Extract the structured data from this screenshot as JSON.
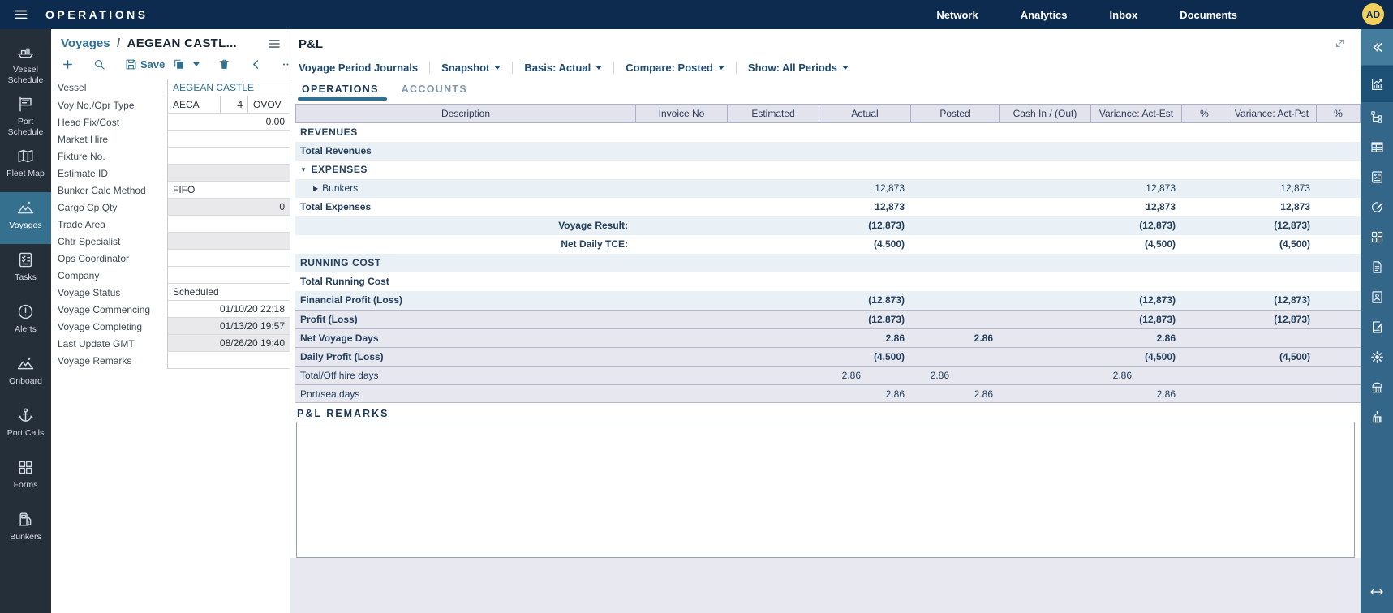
{
  "colors": {
    "topbar_bg": "#0d2b4f",
    "accent": "#2e7191",
    "left_rail_bg": "#252f3a",
    "left_rail_active_bg": "#35718f",
    "right_rail_bg": "#346689",
    "right_rail_active_bg": "#1e5176",
    "table_header_bg": "#e3e3ed",
    "row_blue_bg": "#e9f0f6",
    "row_lavender_bg": "#e7e7f0",
    "avatar_bg": "#f2d05e"
  },
  "topbar": {
    "title": "OPERATIONS",
    "nav": [
      {
        "label": "Network"
      },
      {
        "label": "Analytics"
      },
      {
        "label": "Inbox"
      },
      {
        "label": "Documents"
      }
    ],
    "avatar": "AD"
  },
  "left_nav": {
    "items": [
      {
        "icon": "vessel-schedule-icon",
        "label": "Vessel Schedule",
        "active": false
      },
      {
        "icon": "port-schedule-icon",
        "label": "Port Schedule",
        "active": false
      },
      {
        "icon": "fleet-map-icon",
        "label": "Fleet Map",
        "active": false
      },
      {
        "icon": "voyages-icon",
        "label": "Voyages",
        "active": true
      },
      {
        "icon": "tasks-icon",
        "label": "Tasks",
        "active": false
      },
      {
        "icon": "alerts-icon",
        "label": "Alerts",
        "active": false
      },
      {
        "icon": "onboard-icon",
        "label": "Onboard",
        "active": false
      },
      {
        "icon": "port-calls-icon",
        "label": "Port Calls",
        "active": false
      },
      {
        "icon": "forms-icon",
        "label": "Forms",
        "active": false
      },
      {
        "icon": "bunkers-icon",
        "label": "Bunkers",
        "active": false
      }
    ]
  },
  "voyage_panel": {
    "breadcrumb_root": "Voyages",
    "breadcrumb_separator": "/",
    "title": "AEGEAN CASTL...",
    "toolbar": [
      {
        "icon": "plus-icon",
        "name": "add"
      },
      {
        "icon": "search-icon",
        "name": "search",
        "sep": true
      },
      {
        "icon": "save-icon",
        "name": "save",
        "label": "Save",
        "sep": true
      },
      {
        "icon": "copy-icon",
        "name": "copy",
        "dropdown": true
      },
      {
        "icon": "delete-icon",
        "name": "delete",
        "sep": true
      },
      {
        "icon": "back-icon",
        "name": "back",
        "sep": true
      },
      {
        "icon": "more-icon",
        "name": "more",
        "sep": true
      }
    ],
    "fields": [
      {
        "label": "Vessel",
        "value": "AEGEAN CASTLE",
        "accent": true
      },
      {
        "label": "Voy No./Opr Type",
        "parts": [
          {
            "value": "AECA"
          },
          {
            "value": "4"
          },
          {
            "value": "OVOV"
          }
        ]
      },
      {
        "label": "Head Fix/Cost",
        "value": "0.00",
        "align": "right"
      },
      {
        "label": "Market Hire",
        "value": ""
      },
      {
        "label": "Fixture No.",
        "value": ""
      },
      {
        "label": "Estimate ID",
        "value": "",
        "readonly": true
      },
      {
        "label": "Bunker Calc Method",
        "value": "FIFO"
      },
      {
        "label": "Cargo Cp Qty",
        "value": "0",
        "align": "right",
        "readonly": true
      },
      {
        "label": "Trade Area",
        "value": ""
      },
      {
        "label": "Chtr Specialist",
        "value": "",
        "readonly": true
      },
      {
        "label": "Ops Coordinator",
        "value": ""
      },
      {
        "label": "Company",
        "value": ""
      },
      {
        "label": "Voyage Status",
        "value": "Scheduled"
      },
      {
        "label": "Voyage Commencing",
        "value": "01/10/20 22:18",
        "align": "right"
      },
      {
        "label": "Voyage Completing",
        "value": "01/13/20 19:57",
        "align": "right",
        "readonly": true
      },
      {
        "label": "Last Update GMT",
        "value": "08/26/20 19:40",
        "align": "right",
        "readonly": true
      },
      {
        "label": "Voyage Remarks",
        "value": ""
      }
    ]
  },
  "pl_panel": {
    "title": "P&L",
    "toolbar": [
      {
        "label": "Voyage Period Journals",
        "dropdown": false
      },
      {
        "label": "Snapshot",
        "dropdown": true
      },
      {
        "label": "Basis: Actual",
        "dropdown": true
      },
      {
        "label": "Compare: Posted",
        "dropdown": true
      },
      {
        "label": "Show: All Periods",
        "dropdown": true
      }
    ],
    "tabs": [
      {
        "label": "OPERATIONS",
        "active": true
      },
      {
        "label": "ACCOUNTS",
        "active": false
      }
    ],
    "remarks_label": "P&L REMARKS",
    "remarks_value": ""
  },
  "pl_table": {
    "columns": [
      {
        "key": "desc",
        "label": "Description"
      },
      {
        "key": "invoice",
        "label": "Invoice No"
      },
      {
        "key": "estimated",
        "label": "Estimated"
      },
      {
        "key": "actual",
        "label": "Actual"
      },
      {
        "key": "posted",
        "label": "Posted"
      },
      {
        "key": "cash",
        "label": "Cash In / (Out)"
      },
      {
        "key": "var_est",
        "label": "Variance: Act-Est"
      },
      {
        "key": "pct_est",
        "label": "%"
      },
      {
        "key": "var_pst",
        "label": "Variance: Act-Pst"
      },
      {
        "key": "pct_pst",
        "label": "%"
      }
    ],
    "rows": [
      {
        "desc": "REVENUES",
        "kind": "section",
        "bg": "white",
        "values": {}
      },
      {
        "desc": "Total Revenues",
        "kind": "bold",
        "bg": "blue",
        "values": {}
      },
      {
        "desc": "EXPENSES",
        "kind": "section",
        "bg": "white",
        "caret": "down",
        "values": {}
      },
      {
        "desc": "Bunkers",
        "kind": "normal",
        "bg": "blue",
        "caret": "right",
        "indent": true,
        "values": {
          "actual": "12,873",
          "var_est": "12,873",
          "var_pst": "12,873"
        }
      },
      {
        "desc": "Total Expenses",
        "kind": "bold",
        "bg": "white",
        "values": {
          "actual": "12,873",
          "var_est": "12,873",
          "var_pst": "12,873"
        }
      },
      {
        "desc": "Voyage Result:",
        "kind": "bold",
        "bg": "blue",
        "desc_align": "right",
        "values": {
          "actual": "(12,873)",
          "var_est": "(12,873)",
          "var_pst": "(12,873)"
        }
      },
      {
        "desc": "Net Daily TCE:",
        "kind": "bold",
        "bg": "white",
        "desc_align": "right",
        "values": {
          "actual": "(4,500)",
          "var_est": "(4,500)",
          "var_pst": "(4,500)"
        }
      },
      {
        "desc": "RUNNING COST",
        "kind": "section",
        "bg": "blue",
        "values": {}
      },
      {
        "desc": "Total Running Cost",
        "kind": "bold",
        "bg": "white",
        "values": {}
      },
      {
        "desc": "Financial Profit (Loss)",
        "kind": "bold",
        "bg": "blue",
        "values": {
          "actual": "(12,873)",
          "var_est": "(12,873)",
          "var_pst": "(12,873)"
        }
      },
      {
        "desc": "Profit (Loss)",
        "kind": "bold",
        "bg": "lavender",
        "values": {
          "actual": "(12,873)",
          "var_est": "(12,873)",
          "var_pst": "(12,873)"
        }
      },
      {
        "desc": "Net Voyage Days",
        "kind": "bold",
        "bg": "lavender",
        "values": {
          "actual": "2.86",
          "posted": "2.86",
          "var_est": "2.86"
        }
      },
      {
        "desc": "Daily Profit (Loss)",
        "kind": "bold",
        "bg": "lavender",
        "values": {
          "actual": "(4,500)",
          "var_est": "(4,500)",
          "var_pst": "(4,500)"
        }
      },
      {
        "desc": "Total/Off hire days",
        "kind": "normal",
        "bg": "lavender",
        "value_pad": true,
        "values": {
          "actual": "2.86",
          "posted": "2.86",
          "var_est": "2.86"
        }
      },
      {
        "desc": "Port/sea days",
        "kind": "normal",
        "bg": "lavender",
        "values": {
          "actual": "2.86",
          "posted": "2.86",
          "var_est": "2.86"
        }
      }
    ]
  },
  "right_rail": {
    "items": [
      {
        "icon": "collapse-left-icon",
        "band": true
      },
      {
        "icon": "analytics-chart-icon",
        "active": true
      },
      {
        "icon": "hierarchy-icon"
      },
      {
        "icon": "table-icon"
      },
      {
        "icon": "checklist-icon"
      },
      {
        "icon": "compose-icon"
      },
      {
        "icon": "grid-icon"
      },
      {
        "icon": "document-icon"
      },
      {
        "icon": "contact-card-icon"
      },
      {
        "icon": "note-edit-icon"
      },
      {
        "icon": "gear-icon"
      },
      {
        "icon": "columns-icon"
      },
      {
        "icon": "crane-icon"
      }
    ],
    "bottom_icon": "resize-horizontal-icon"
  }
}
